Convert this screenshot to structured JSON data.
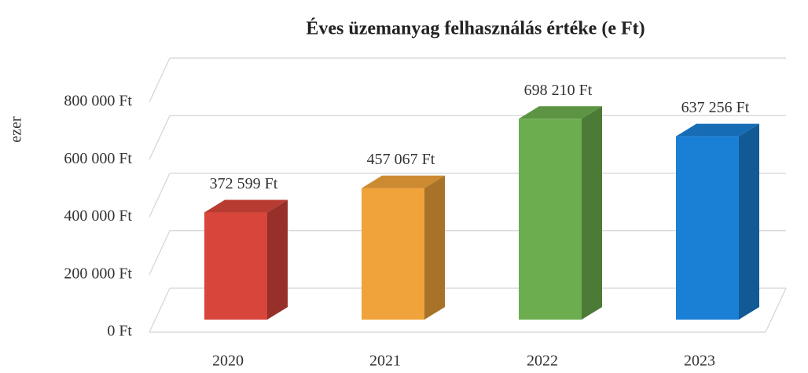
{
  "chart_data": {
    "type": "bar3d",
    "title": "Éves üzemanyag felhasználás értéke (e Ft)",
    "y_label": "ezer",
    "categories": [
      "2020",
      "2021",
      "2022",
      "2023"
    ],
    "values": [
      372599,
      457067,
      698210,
      637256
    ],
    "value_labels": [
      "372 599 Ft",
      "457 067 Ft",
      "698 210 Ft",
      "637 256 Ft"
    ],
    "colors": [
      "#d8453b",
      "#f0a33a",
      "#6cae4f",
      "#1a80d6"
    ],
    "ylim": [
      0,
      800000
    ],
    "yticks": [
      {
        "value": 0,
        "label": "0 Ft"
      },
      {
        "value": 200000,
        "label": "200 000 Ft"
      },
      {
        "value": 400000,
        "label": "400 000 Ft"
      },
      {
        "value": 600000,
        "label": "600 000 Ft"
      },
      {
        "value": 800000,
        "label": "800 000 Ft"
      }
    ],
    "grid": true
  }
}
